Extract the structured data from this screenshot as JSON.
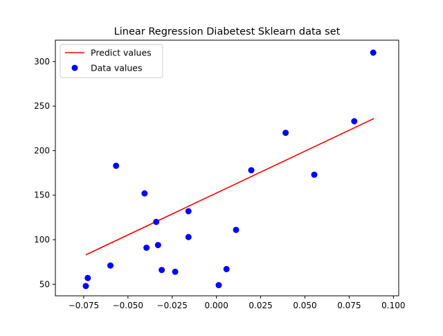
{
  "chart_data": {
    "type": "scatter",
    "title": "Linear Regression Diabetest Sklearn data set",
    "xlabel": "",
    "ylabel": "",
    "xlim": [
      -0.091,
      0.103
    ],
    "ylim": [
      37,
      324
    ],
    "xticks": [
      -0.075,
      -0.05,
      -0.025,
      0.0,
      0.025,
      0.05,
      0.075,
      0.1
    ],
    "xtick_labels": [
      "−0.075",
      "−0.050",
      "−0.025",
      "0.000",
      "0.025",
      "0.050",
      "0.075",
      "0.100"
    ],
    "yticks": [
      50,
      100,
      150,
      200,
      250,
      300
    ],
    "ytick_labels": [
      "50",
      "100",
      "150",
      "200",
      "250",
      "300"
    ],
    "grid": false,
    "legend_position": "top-left",
    "series": [
      {
        "name": "Predict values",
        "kind": "line",
        "color": "#ff0000",
        "x": [
          -0.0738,
          0.089
        ],
        "y": [
          83,
          236
        ]
      },
      {
        "name": "Data values",
        "kind": "scatter",
        "color": "#0000ff",
        "x": [
          -0.0738,
          -0.0727,
          -0.0599,
          -0.0567,
          -0.0406,
          -0.0395,
          -0.034,
          -0.033,
          -0.0309,
          -0.0233,
          -0.0158,
          -0.0158,
          0.0013,
          0.0057,
          0.0111,
          0.0197,
          0.0391,
          0.0553,
          0.0779,
          0.0886
        ],
        "y": [
          48,
          57,
          71,
          183,
          152,
          91,
          120,
          94,
          66,
          64,
          132,
          103,
          49,
          67,
          111,
          178,
          220,
          173,
          233,
          310
        ]
      }
    ]
  }
}
